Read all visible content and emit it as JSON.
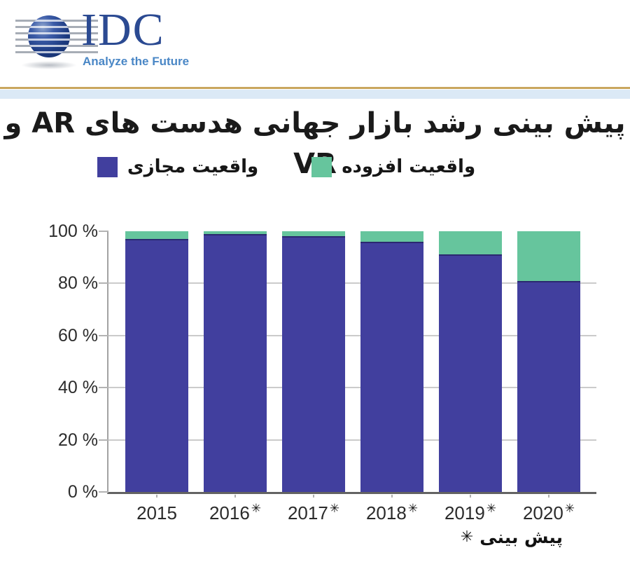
{
  "header": {
    "brand": "IDC",
    "tagline": "Analyze the Future"
  },
  "title": "پیش بینی رشد بازار جهانی هدست های AR و VR",
  "legend": {
    "items": [
      {
        "label": "واقعیت مجازی",
        "color": "#413f9e"
      },
      {
        "label": "واقعیت افزوده",
        "color": "#66c59d"
      }
    ]
  },
  "footnote": {
    "marker": "✳",
    "label": "پیش بینی"
  },
  "chart_data": {
    "type": "bar",
    "stacked": true,
    "title": "پیش بینی رشد بازار جهانی هدست های AR و VR",
    "categories": [
      "2015",
      "2016",
      "2017",
      "2018",
      "2019",
      "2020"
    ],
    "forecast_flags": [
      false,
      true,
      true,
      true,
      true,
      true
    ],
    "forecast_marker": "✳",
    "series": [
      {
        "name": "واقعیت مجازی",
        "color": "#413f9e",
        "values": [
          97,
          99,
          98,
          96,
          91,
          81
        ]
      },
      {
        "name": "واقعیت افزوده",
        "color": "#66c59d",
        "values": [
          3,
          1,
          2,
          4,
          9,
          19
        ]
      }
    ],
    "xlabel": "",
    "ylabel": "",
    "ylim": [
      0,
      100
    ],
    "yticks": [
      0,
      20,
      40,
      60,
      80,
      100
    ],
    "ytick_suffix": " %",
    "grid": true,
    "legend_position": "top"
  },
  "colors": {
    "accent_gold": "#c9a65f",
    "band_blue": "#dbe9f6",
    "bar_blue": "#413f9e",
    "bar_green": "#66c59d",
    "bar_blue_border": "#2b2970",
    "logo_navy": "#2b4a92",
    "logo_light_blue": "#4a87c6"
  }
}
